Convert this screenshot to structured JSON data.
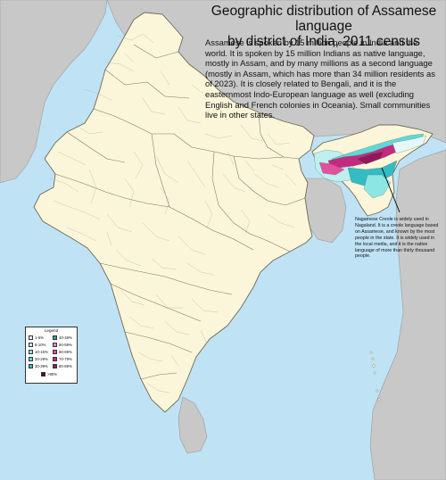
{
  "title": {
    "line1": "Geographic distribution of Assamese language",
    "line2": "by district of India, 2011 census"
  },
  "description": "Assamese is spoken by 15 million people in India and the world. It is spoken by 15 million Indians as native language, mostly in Assam, and by many millions as a second language (mostly in Assam, which has more than 34 million residents as of 2023). It is closely related to Bengali, and it is the easternmost Indo-European language as well (excluding English and French colonies in Oceania). Small communities live in other states.",
  "note": "Nagamese Creole is widely used in Nagaland. It is a creole language based on Assamese, and known by the most people in the state. It is widely used in the local media, and it is the native language of more than thirty thousand people.",
  "legend": {
    "title": "Legend",
    "items": [
      {
        "label": "1-5%",
        "color": "#e4f8f7"
      },
      {
        "label": "5-10%",
        "color": "#bdf0ef"
      },
      {
        "label": "10-15%",
        "color": "#8ce6e4"
      },
      {
        "label": "20-29%",
        "color": "#5fd8d8"
      },
      {
        "label": "30-39%",
        "color": "#33bcc4"
      },
      {
        "label": "40-49%",
        "color": "#2a9ea8"
      },
      {
        "label": "50-59%",
        "color": "#f084c0"
      },
      {
        "label": "60-69%",
        "color": "#e2509e"
      },
      {
        "label": "70-79%",
        "color": "#c42a80"
      },
      {
        "label": "80-89%",
        "color": "#92185e"
      },
      {
        "label": ">90%",
        "color": "#4a0a2a"
      }
    ]
  },
  "colors": {
    "sea": "#bfe3f5",
    "india_land": "#fbf6da",
    "neighbor_land": "#c8c8c8",
    "district_border": "#b8b39b",
    "state_border": "#7a7465"
  }
}
